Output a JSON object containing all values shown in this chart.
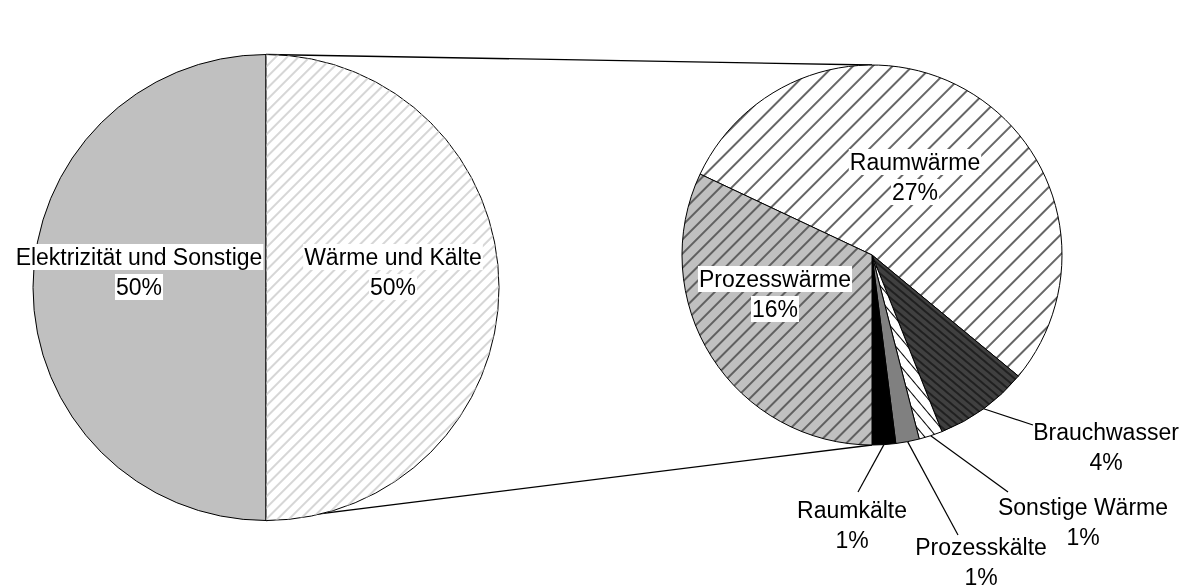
{
  "chart_data": [
    {
      "type": "pie",
      "categories": [
        "Elektrizität und Sonstige",
        "Wärme und Kälte"
      ],
      "values": [
        50,
        50
      ],
      "colors": [
        "#c0c0c0",
        "#ffffff"
      ],
      "value_labels": [
        "50%",
        "50%"
      ]
    },
    {
      "type": "pie",
      "categories": [
        "Raumwärme",
        "Brauchwasser",
        "Sonstige Wärme",
        "Prozesskälte",
        "Raumkälte",
        "Prozesswärme"
      ],
      "values": [
        27,
        4,
        1,
        1,
        1,
        16
      ],
      "colors": [
        "#ffffff",
        "#404040",
        "#ffffff",
        "#808080",
        "#000000",
        "#c0c0c0"
      ],
      "value_labels": [
        "27%",
        "4%",
        "1%",
        "1%",
        "1%",
        "16%"
      ]
    }
  ]
}
